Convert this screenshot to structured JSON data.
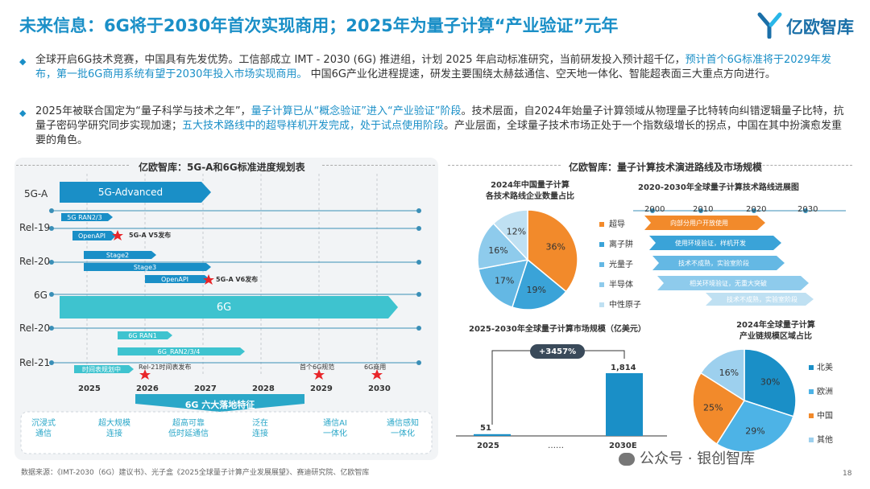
{
  "header": {
    "title": "未来信息：6G将于2030年首次实现商用；2025年为量子计算“产业验证”元年",
    "logo_text": "亿欧智库",
    "page_number": "18"
  },
  "bullets": [
    {
      "p1": "全球开启6G技术竞赛，中国具有先发优势。工信部成立 IMT - 2030 (6G) 推进组，计划 2025 年启动标准研究，当前研发投入预计超千亿，",
      "h1": "预计首个6G标准将于2029年发布，第一批6G商用系统有望于2030年投入市场实现商用。",
      "p2": " 中国6G产业化进程提速，研发主要围绕太赫兹通信、空天地一体化、智能超表面三大重点方向进行。"
    },
    {
      "p1": "2025年被联合国定为“量子科学与技术之年”，",
      "h1": "量子计算已从“概念验证”进入“产业验证”阶段",
      "p2": "。技术层面，自2024年始量子计算领域从物理量子比特转向纠错逻辑量子比特，抗量子密码学研究同步实现加速；",
      "h2": "五大技术路线中的超导样机开发完成，处于试点使用阶段",
      "p3": "。产业层面，全球量子技术市场正处于一个指数级增长的拐点，中国在其中扮演愈发重要的角色。"
    }
  ],
  "left_panel": {
    "title": "亿欧智库：5G-A和6G标准进度规划表",
    "rows": [
      "5G-A",
      "Rel-19",
      "Rel-20",
      "6G",
      "Rel-20",
      "Rel-21"
    ],
    "bars": {
      "b5ga": "5G-Advanced",
      "ran23": "5G RAN2/3",
      "openapi1": "OpenAPI",
      "stage2": "Stage2",
      "stage3": "Stage3",
      "openapi2": "OpenAPI",
      "b6g": "6G",
      "ran1": "6G RAN1",
      "ran234": "6G_RAN2/3/4",
      "plan": "时间表规划中"
    },
    "marks": {
      "v5": "5G-A  V5发布",
      "v6": "5G-A   V6发布",
      "rel21": "Rel-21时间表发布",
      "first_spec": "首个6G规范",
      "commercial": "6G商用"
    },
    "years": [
      "2025",
      "2026",
      "2027",
      "2028",
      "2029",
      "2030"
    ],
    "features_title": "6G 六大落地特征",
    "features": [
      [
        "沉浸式",
        "通信"
      ],
      [
        "超大规模",
        "连接"
      ],
      [
        "超高可靠",
        "低时延通信"
      ],
      [
        "泛在",
        "连接"
      ],
      [
        "通信AI",
        "一体化"
      ],
      [
        "通信感知",
        "一体化"
      ]
    ]
  },
  "right_panel": {
    "title": "亿欧智库：量子计算技术演进路线及市场规模",
    "pie1": {
      "title_line1": "2024年中国量子计算",
      "title_line2": "各技术路线企业数量占比",
      "labels": [
        "36%",
        "19%",
        "17%",
        "16%",
        "12%"
      ],
      "values": [
        36,
        19,
        17,
        16,
        12
      ],
      "colors": [
        "#f28a2b",
        "#3aa3d8",
        "#64b8e4",
        "#8ecbec",
        "#bfe0f2"
      ]
    },
    "roadmap": {
      "title": "2020-2030年全球量子计算技术路线进展图",
      "years": [
        "2000",
        "2010",
        "2020",
        "2030"
      ],
      "routes": [
        {
          "name": "超导",
          "text": "向部分用户开放使用",
          "color": "#f28a2b"
        },
        {
          "name": "离子阱",
          "text": "使用环境验证，样机开发",
          "color": "#3aa3d8"
        },
        {
          "name": "光量子",
          "text": "技术不成熟，实验室阶段",
          "color": "#64b8e4"
        },
        {
          "name": "半导体",
          "text": "相关环境验证，无重大突破",
          "color": "#8ecbec"
        },
        {
          "name": "中性原子",
          "text": "技术不成熟，实验室阶段",
          "color": "#bfe0f2"
        }
      ]
    },
    "market": {
      "title": "2025-2030年全球量子计算市场规模（亿美元）",
      "growth": "+3457%",
      "values": [
        51,
        1814
      ],
      "value_labels": [
        "51",
        "1,814"
      ],
      "categories": [
        "2025",
        "2030E"
      ],
      "ellipsis": "……"
    },
    "pie2": {
      "title_line1": "2024年全球量子计算",
      "title_line2": "产业链规模区域占比",
      "labels": [
        "30%",
        "29%",
        "25%",
        "16%"
      ],
      "values": [
        30,
        29,
        25,
        16
      ],
      "colors": [
        "#1a8fc7",
        "#4db3e6",
        "#f28a2b",
        "#9dd0ee"
      ],
      "legend": [
        "北美",
        "欧洲",
        "中国",
        "其他"
      ]
    }
  },
  "footer": {
    "source": "数据来源：《IMT-2030（6G）建议书》、光子盒《2025全球量子计算产业发展展望》、赛迪研究院、亿欧智库",
    "watermark": "公众号 · 银创智库"
  }
}
